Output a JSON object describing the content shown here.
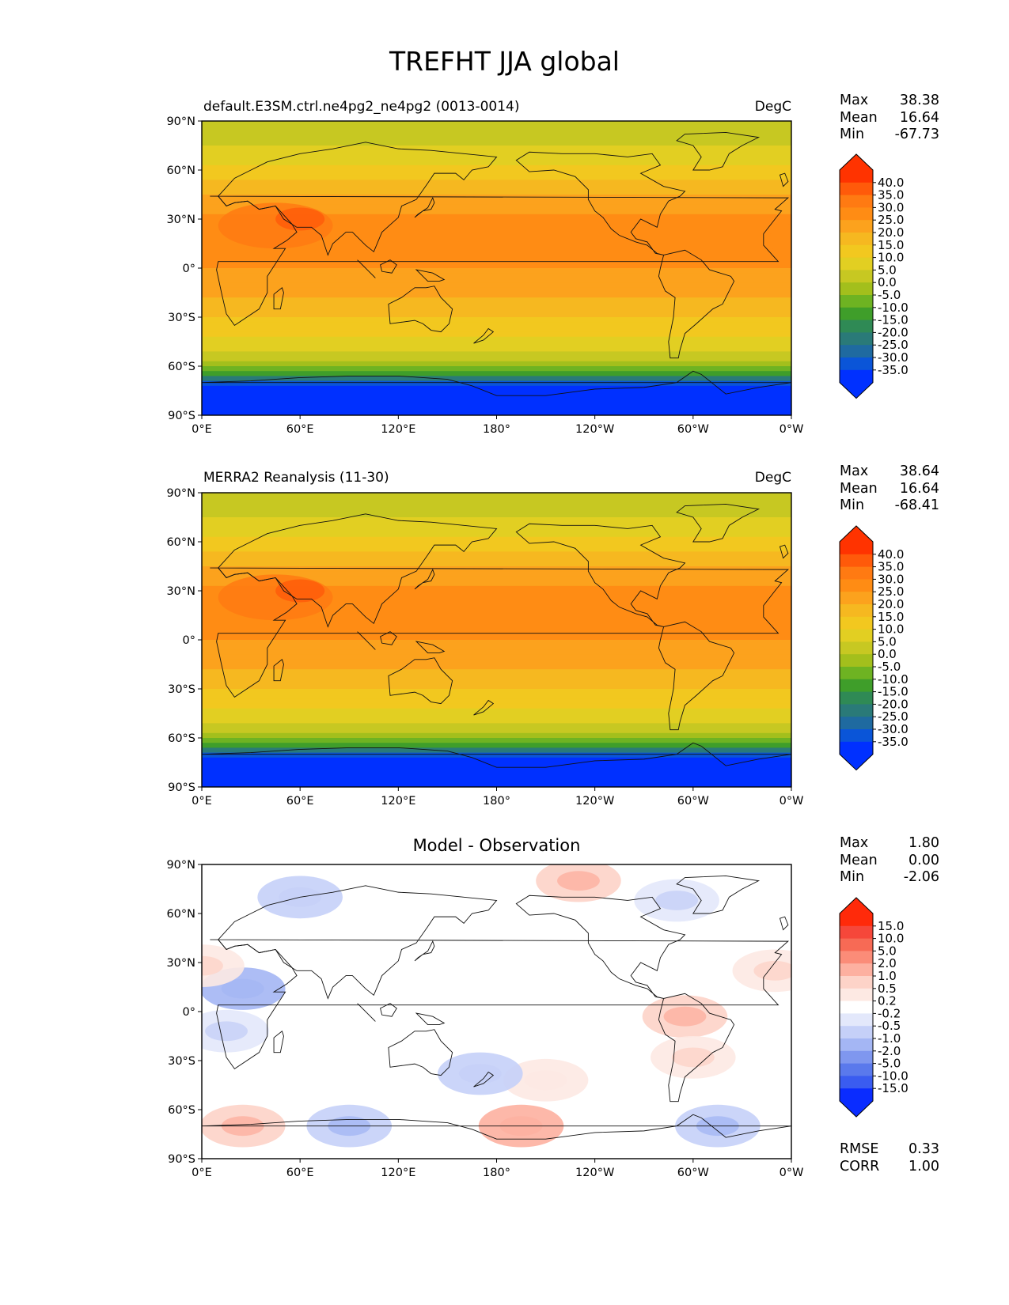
{
  "title": "TREFHT JJA global",
  "axes": {
    "lat_ticks": [
      {
        "lat": 90,
        "label": "90°N"
      },
      {
        "lat": 60,
        "label": "60°N"
      },
      {
        "lat": 30,
        "label": "30°N"
      },
      {
        "lat": 0,
        "label": "0°"
      },
      {
        "lat": -30,
        "label": "30°S"
      },
      {
        "lat": -60,
        "label": "60°S"
      },
      {
        "lat": -90,
        "label": "90°S"
      }
    ],
    "lon_ticks": [
      {
        "lon": 0,
        "label": "0°E"
      },
      {
        "lon": 60,
        "label": "60°E"
      },
      {
        "lon": 120,
        "label": "120°E"
      },
      {
        "lon": 180,
        "label": "180°"
      },
      {
        "lon": 240,
        "label": "120°W"
      },
      {
        "lon": 300,
        "label": "60°W"
      },
      {
        "lon": 360,
        "label": "0°W"
      }
    ]
  },
  "panels": [
    {
      "id": "test",
      "title_left": "default.E3SM.ctrl.ne4pg2_ne4pg2 (0013-0014)",
      "title_right": "DegC",
      "stats": [
        {
          "label": "Max",
          "value": "38.38"
        },
        {
          "label": "Mean",
          "value": "16.64"
        },
        {
          "label": "Min",
          "value": "-67.73"
        }
      ],
      "colorbar": {
        "labels": [
          "40.0",
          "35.0",
          "30.0",
          "25.0",
          "20.0",
          "15.0",
          "10.0",
          "5.0",
          "0.0",
          "-5.0",
          "-10.0",
          "-15.0",
          "-20.0",
          "-25.0",
          "-30.0",
          "-35.0"
        ],
        "colors": [
          "#ff3300",
          "#ff5a0a",
          "#ff7a12",
          "#ff8c14",
          "#fca21d",
          "#f6b820",
          "#f2c81f",
          "#e2cf22",
          "#c7c822",
          "#a3bf1c",
          "#6eb322",
          "#3f9e2a",
          "#2f8a55",
          "#2a7a78",
          "#1f6aa0",
          "#0a55d8",
          "#0030ff"
        ],
        "min_color": "#0030ff",
        "max_color": "#ff3300"
      }
    },
    {
      "id": "reference",
      "title_left": "MERRA2 Reanalysis (11-30)",
      "title_right": "DegC",
      "stats": [
        {
          "label": "Max",
          "value": "38.64"
        },
        {
          "label": "Mean",
          "value": "16.64"
        },
        {
          "label": "Min",
          "value": "-68.41"
        }
      ],
      "colorbar": {
        "labels": [
          "40.0",
          "35.0",
          "30.0",
          "25.0",
          "20.0",
          "15.0",
          "10.0",
          "5.0",
          "0.0",
          "-5.0",
          "-10.0",
          "-15.0",
          "-20.0",
          "-25.0",
          "-30.0",
          "-35.0"
        ],
        "colors": [
          "#ff3300",
          "#ff5a0a",
          "#ff7a12",
          "#ff8c14",
          "#fca21d",
          "#f6b820",
          "#f2c81f",
          "#e2cf22",
          "#c7c822",
          "#a3bf1c",
          "#6eb322",
          "#3f9e2a",
          "#2f8a55",
          "#2a7a78",
          "#1f6aa0",
          "#0a55d8",
          "#0030ff"
        ],
        "min_color": "#0030ff",
        "max_color": "#ff3300"
      }
    },
    {
      "id": "difference",
      "title_center": "Model - Observation",
      "stats": [
        {
          "label": "Max",
          "value": "1.80"
        },
        {
          "label": "Mean",
          "value": "0.00"
        },
        {
          "label": "Min",
          "value": "-2.06"
        }
      ],
      "extra_stats": [
        {
          "label": "RMSE",
          "value": "0.33"
        },
        {
          "label": "CORR",
          "value": "1.00"
        }
      ],
      "colorbar": {
        "labels": [
          "15.0",
          "10.0",
          "5.0",
          "2.0",
          "1.0",
          "0.5",
          "0.2",
          "-0.2",
          "-0.5",
          "-1.0",
          "-2.0",
          "-5.0",
          "-10.0",
          "-15.0"
        ],
        "colors": [
          "#ff2a0a",
          "#f6473a",
          "#f76a55",
          "#fb8c78",
          "#fdb0a0",
          "#fdd3c8",
          "#fde9e3",
          "#ffffff",
          "#e3e8fb",
          "#c5d0f8",
          "#a4b6f4",
          "#7f97ef",
          "#5a79ec",
          "#3a5cf0",
          "#0a2cff"
        ],
        "min_color": "#0a2cff",
        "max_color": "#ff2a0a"
      }
    }
  ],
  "chart_data": [
    {
      "type": "heatmap",
      "title": "default.E3SM.ctrl.ne4pg2_ne4pg2 (0013-0014)",
      "units": "DegC",
      "variable": "TREFHT",
      "season": "JJA",
      "x_range": [
        0,
        360
      ],
      "y_range": [
        -90,
        90
      ],
      "zonal_profile": {
        "lat": [
          90,
          75,
          60,
          45,
          30,
          15,
          0,
          -15,
          -30,
          -45,
          -55,
          -62,
          -70,
          -90
        ],
        "value": [
          1,
          5,
          12,
          20,
          26,
          27,
          25,
          22,
          15,
          8,
          2,
          -8,
          -30,
          -60
        ]
      },
      "levels": [
        -35,
        -30,
        -25,
        -20,
        -15,
        -10,
        -5,
        0,
        5,
        10,
        15,
        20,
        25,
        30,
        35,
        40
      ],
      "max": 38.38,
      "mean": 16.64,
      "min": -67.73
    },
    {
      "type": "heatmap",
      "title": "MERRA2 Reanalysis (11-30)",
      "units": "DegC",
      "variable": "TREFHT",
      "season": "JJA",
      "x_range": [
        0,
        360
      ],
      "y_range": [
        -90,
        90
      ],
      "zonal_profile": {
        "lat": [
          90,
          75,
          60,
          45,
          30,
          15,
          0,
          -15,
          -30,
          -45,
          -55,
          -62,
          -70,
          -90
        ],
        "value": [
          1,
          5,
          12,
          20,
          26,
          27,
          25,
          22,
          15,
          8,
          2,
          -8,
          -30,
          -60
        ]
      },
      "levels": [
        -35,
        -30,
        -25,
        -20,
        -15,
        -10,
        -5,
        0,
        5,
        10,
        15,
        20,
        25,
        30,
        35,
        40
      ],
      "max": 38.64,
      "mean": 16.64,
      "min": -68.41
    },
    {
      "type": "heatmap",
      "title": "Model - Observation",
      "units": "DegC",
      "x_range": [
        0,
        360
      ],
      "y_range": [
        -90,
        90
      ],
      "levels": [
        -15,
        -10,
        -5,
        -2,
        -1,
        -0.5,
        -0.2,
        0.2,
        0.5,
        1,
        2,
        5,
        10,
        15
      ],
      "anomalies": [
        {
          "lon": 25,
          "lat": 14,
          "value": -1.2
        },
        {
          "lon": 15,
          "lat": -12,
          "value": -0.5
        },
        {
          "lon": 60,
          "lat": 70,
          "value": -0.6
        },
        {
          "lon": 230,
          "lat": 80,
          "value": 0.8
        },
        {
          "lon": 290,
          "lat": 68,
          "value": -0.5
        },
        {
          "lon": 295,
          "lat": -3,
          "value": 0.8
        },
        {
          "lon": 300,
          "lat": -28,
          "value": 0.4
        },
        {
          "lon": 25,
          "lat": -70,
          "value": 0.9
        },
        {
          "lon": 90,
          "lat": -70,
          "value": -1.0
        },
        {
          "lon": 195,
          "lat": -70,
          "value": 1.0
        },
        {
          "lon": 315,
          "lat": -70,
          "value": -1.0
        },
        {
          "lon": 210,
          "lat": -42,
          "value": 0.3
        },
        {
          "lon": 170,
          "lat": -38,
          "value": -0.6
        },
        {
          "lon": 350,
          "lat": 25,
          "value": 0.4
        },
        {
          "lon": 0,
          "lat": 28,
          "value": 0.4
        }
      ],
      "max": 1.8,
      "mean": 0.0,
      "min": -2.06,
      "rmse": 0.33,
      "corr": 1.0
    }
  ]
}
